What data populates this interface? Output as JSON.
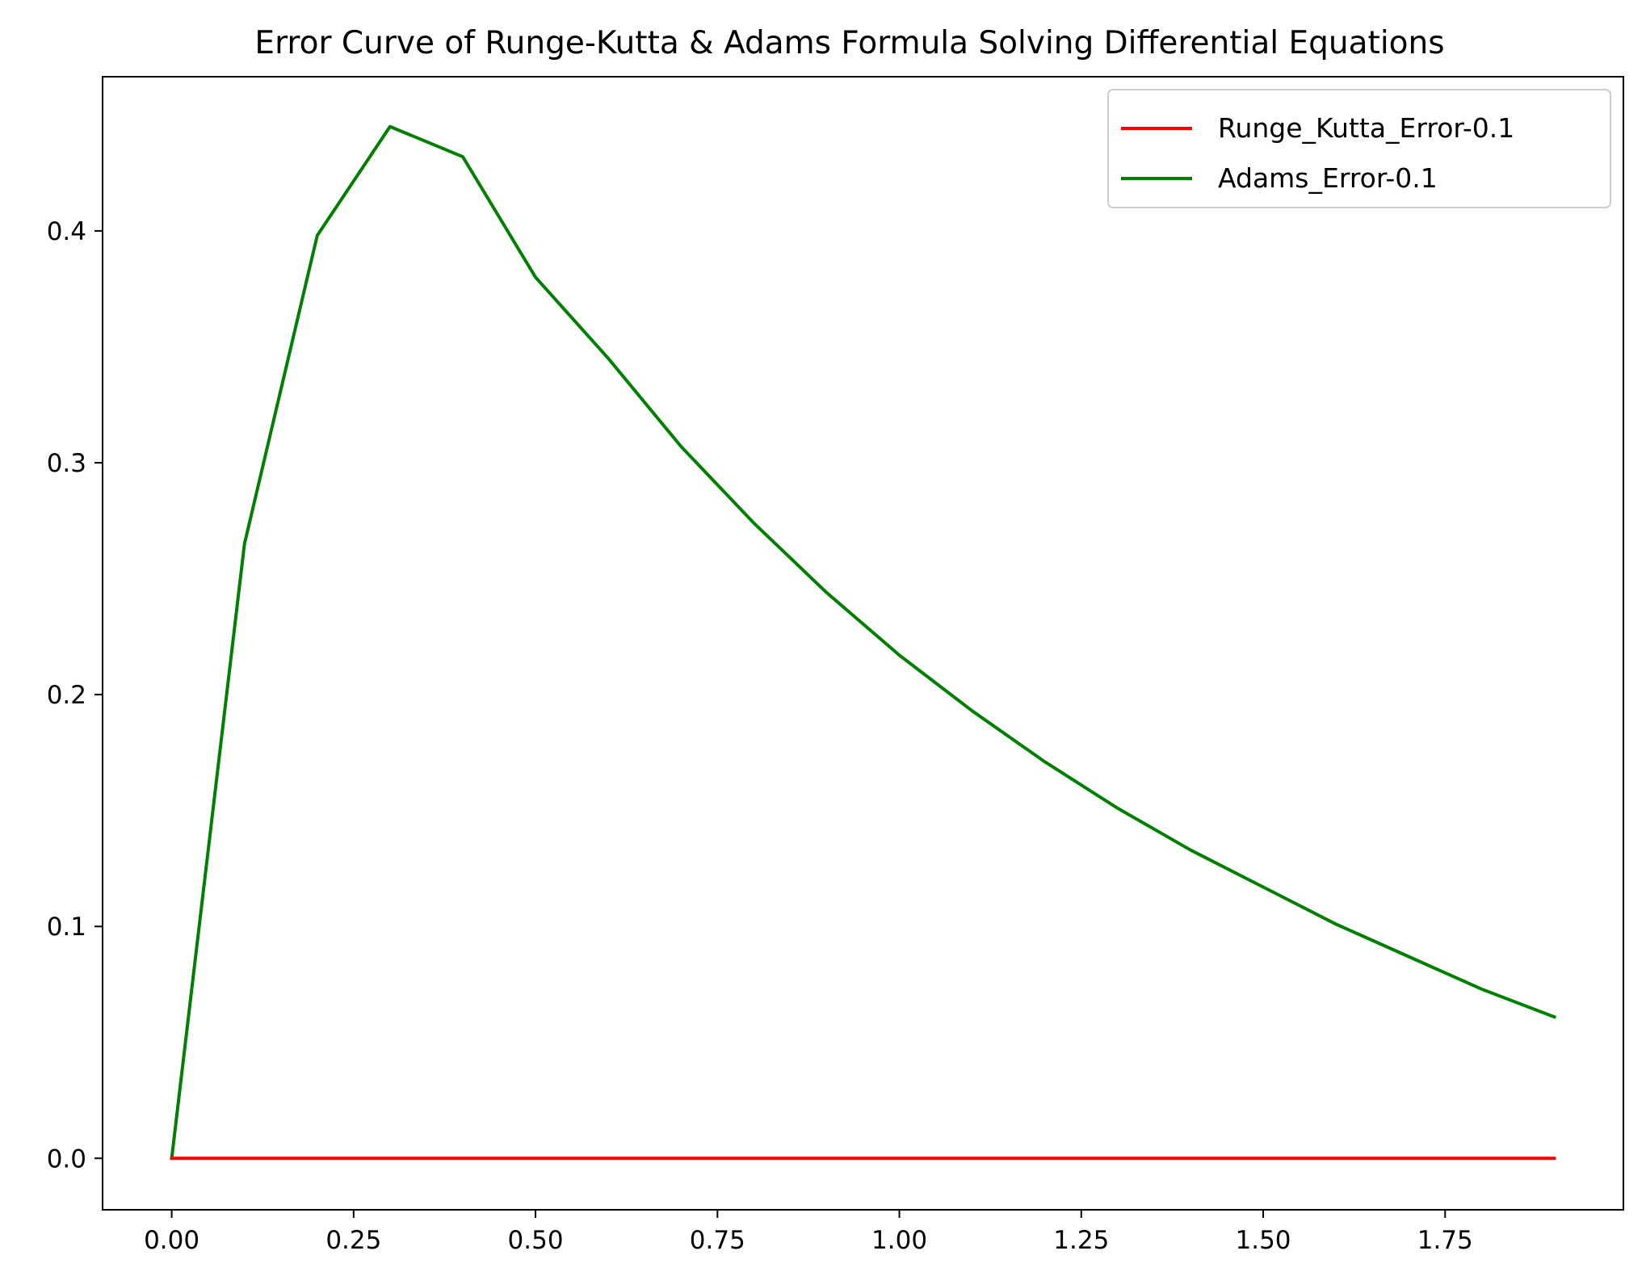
{
  "chart_data": {
    "type": "line",
    "title": "Error Curve of Runge-Kutta & Adams Formula Solving Differential Equations",
    "xlabel": "",
    "ylabel": "",
    "xlim": [
      -0.095,
      1.995
    ],
    "ylim": [
      -0.0222,
      0.4665
    ],
    "grid": false,
    "legend_position": "top-right",
    "x_ticks": [
      0.0,
      0.25,
      0.5,
      0.75,
      1.0,
      1.25,
      1.5,
      1.75
    ],
    "x_tick_labels": [
      "0.00",
      "0.25",
      "0.50",
      "0.75",
      "1.00",
      "1.25",
      "1.50",
      "1.75"
    ],
    "y_ticks": [
      0.0,
      0.1,
      0.2,
      0.3,
      0.4
    ],
    "y_tick_labels": [
      "0.0",
      "0.1",
      "0.2",
      "0.3",
      "0.4"
    ],
    "x": [
      0.0,
      0.1,
      0.2,
      0.3,
      0.4,
      0.5,
      0.6,
      0.7,
      0.8,
      0.9,
      1.0,
      1.1,
      1.2,
      1.3,
      1.4,
      1.5,
      1.6,
      1.7,
      1.8,
      1.9
    ],
    "series": [
      {
        "name": "Runge_Kutta_Error-0.1",
        "color": "#ff0000",
        "values": [
          0.0,
          0.0,
          0.0,
          0.0,
          0.0,
          0.0,
          0.0,
          0.0,
          0.0,
          0.0,
          0.0,
          0.0,
          0.0,
          0.0,
          0.0,
          0.0,
          0.0,
          0.0,
          0.0,
          0.0
        ]
      },
      {
        "name": "Adams_Error-0.1",
        "color": "#008000",
        "values": [
          0.0,
          0.265,
          0.398,
          0.445,
          0.432,
          0.38,
          0.345,
          0.307,
          0.274,
          0.244,
          0.217,
          0.193,
          0.171,
          0.151,
          0.133,
          0.117,
          0.101,
          0.087,
          0.073,
          0.061
        ]
      }
    ]
  }
}
